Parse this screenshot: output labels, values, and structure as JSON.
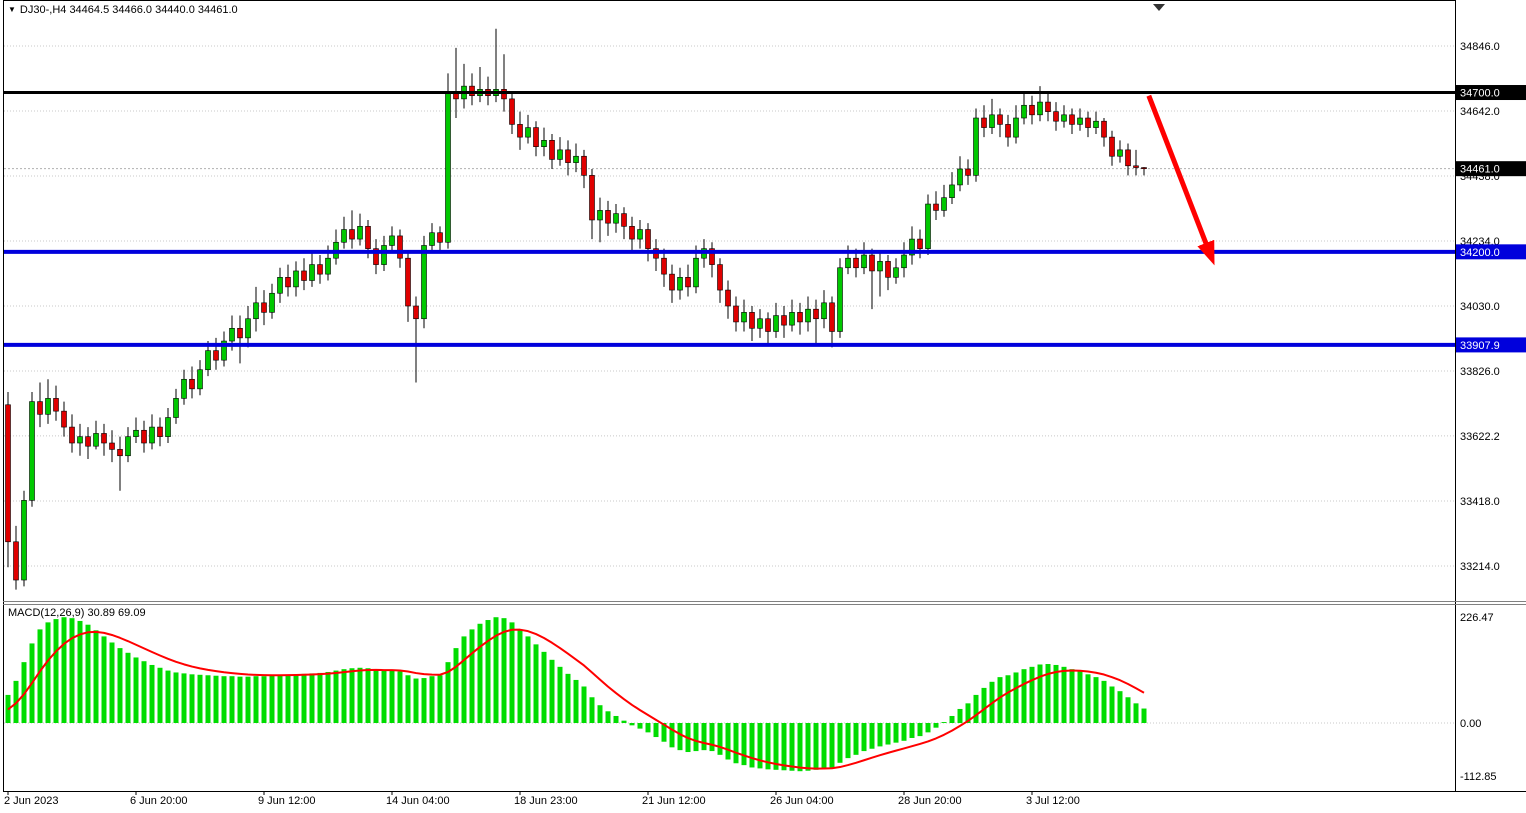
{
  "title_bar": {
    "text": "DJ30-,H4 34464.5 34466.0 34440.0 34461.0"
  },
  "icons": {
    "expand_arrow": "▼"
  },
  "macd_panel": {
    "label_text": "MACD(12,26,9) 30.89 69.09"
  },
  "colors": {
    "bull": "#00C800",
    "bear": "#E00000",
    "wick": "#000000",
    "hist": "#00DC00",
    "signal": "#FF0000",
    "line_black": "#000000",
    "line_blue": "#0000DC",
    "grid": "#C8C8C8",
    "bid_line": "#B0B0B0",
    "arrow": "#FF0000",
    "box_text": "#FFFFFF",
    "axis_text": "#000000"
  },
  "price_axis": {
    "line_labels": [
      {
        "text": "34700.0",
        "price": 34700.0,
        "bg": "#000000"
      },
      {
        "text": "34461.0",
        "price": 34461.0,
        "bg": "#000000"
      },
      {
        "text": "34200.0",
        "price": 34200.0,
        "bg": "#0000DC"
      },
      {
        "text": "33907.9",
        "price": 33907.9,
        "bg": "#0000DC"
      }
    ]
  },
  "arrow_annotation": {
    "color": "#FF0000",
    "from": {
      "bar_index": 142.6,
      "price": 34690
    },
    "to": {
      "bar_index": 150.0,
      "price": 34210
    }
  },
  "chart_data": [
    {
      "type": "candlestick",
      "title": "DJ30-,H4",
      "current_bar": {
        "open": 34464.5,
        "high": 34466.0,
        "low": 34440.0,
        "close": 34461.0
      },
      "ylim": [
        33140,
        34910
      ],
      "y_ticks": [
        {
          "label": "34846.0",
          "value": 34846.0
        },
        {
          "label": "34642.0",
          "value": 34642.0
        },
        {
          "label": "34438.0",
          "value": 34438.0
        },
        {
          "label": "34234.0",
          "value": 34234.0
        },
        {
          "label": "34030.0",
          "value": 34030.0
        },
        {
          "label": "33826.0",
          "value": 33826.0
        },
        {
          "label": "33622.2",
          "value": 33622.2
        },
        {
          "label": "33418.0",
          "value": 33418.0
        },
        {
          "label": "33214.0",
          "value": 33214.0
        }
      ],
      "x_ticks": [
        {
          "label": "2 Jun 2023",
          "index": 0
        },
        {
          "label": "6 Jun 20:00",
          "index": 16
        },
        {
          "label": "9 Jun 12:00",
          "index": 32
        },
        {
          "label": "14 Jun 04:00",
          "index": 48
        },
        {
          "label": "18 Jun 23:00",
          "index": 64
        },
        {
          "label": "21 Jun 12:00",
          "index": 80
        },
        {
          "label": "26 Jun 04:00",
          "index": 96
        },
        {
          "label": "28 Jun 20:00",
          "index": 112
        },
        {
          "label": "3 Jul 12:00",
          "index": 128
        }
      ],
      "horizontal_lines": [
        {
          "value": 34700.0,
          "color": "#000000",
          "width": 3
        },
        {
          "value": 34200.0,
          "color": "#0000DC",
          "width": 4
        },
        {
          "value": 33907.9,
          "color": "#0000DC",
          "width": 4
        }
      ],
      "bid_price": 34461.0,
      "ohlc": [
        [
          33720,
          33760,
          33210,
          33290
        ],
        [
          33290,
          33340,
          33140,
          33170
        ],
        [
          33170,
          33450,
          33150,
          33420
        ],
        [
          33420,
          33760,
          33400,
          33730
        ],
        [
          33730,
          33790,
          33650,
          33690
        ],
        [
          33690,
          33800,
          33660,
          33740
        ],
        [
          33740,
          33780,
          33670,
          33700
        ],
        [
          33700,
          33730,
          33620,
          33650
        ],
        [
          33650,
          33690,
          33570,
          33600
        ],
        [
          33600,
          33660,
          33560,
          33620
        ],
        [
          33620,
          33650,
          33550,
          33590
        ],
        [
          33590,
          33670,
          33580,
          33630
        ],
        [
          33630,
          33660,
          33560,
          33600
        ],
        [
          33600,
          33640,
          33540,
          33580
        ],
        [
          33580,
          33620,
          33450,
          33560
        ],
        [
          33560,
          33650,
          33540,
          33620
        ],
        [
          33620,
          33680,
          33600,
          33640
        ],
        [
          33640,
          33670,
          33570,
          33600
        ],
        [
          33600,
          33690,
          33580,
          33650
        ],
        [
          33650,
          33680,
          33590,
          33620
        ],
        [
          33620,
          33710,
          33600,
          33680
        ],
        [
          33680,
          33770,
          33660,
          33740
        ],
        [
          33740,
          33830,
          33720,
          33800
        ],
        [
          33800,
          33840,
          33740,
          33770
        ],
        [
          33770,
          33860,
          33750,
          33830
        ],
        [
          33830,
          33920,
          33810,
          33890
        ],
        [
          33890,
          33930,
          33830,
          33860
        ],
        [
          33860,
          33950,
          33840,
          33920
        ],
        [
          33920,
          34000,
          33890,
          33960
        ],
        [
          33960,
          34000,
          33850,
          33930
        ],
        [
          33930,
          34030,
          33900,
          33990
        ],
        [
          33990,
          34090,
          33950,
          34040
        ],
        [
          34040,
          34080,
          33970,
          34010
        ],
        [
          34010,
          34100,
          33990,
          34070
        ],
        [
          34070,
          34150,
          34040,
          34120
        ],
        [
          34120,
          34160,
          34060,
          34090
        ],
        [
          34090,
          34170,
          34060,
          34140
        ],
        [
          34140,
          34180,
          34080,
          34110
        ],
        [
          34110,
          34200,
          34090,
          34160
        ],
        [
          34160,
          34190,
          34100,
          34130
        ],
        [
          34130,
          34220,
          34110,
          34180
        ],
        [
          34180,
          34270,
          34160,
          34230
        ],
        [
          34230,
          34310,
          34210,
          34270
        ],
        [
          34270,
          34330,
          34210,
          34240
        ],
        [
          34240,
          34320,
          34220,
          34280
        ],
        [
          34280,
          34300,
          34180,
          34210
        ],
        [
          34210,
          34240,
          34130,
          34160
        ],
        [
          34160,
          34250,
          34140,
          34220
        ],
        [
          34220,
          34280,
          34200,
          34250
        ],
        [
          34250,
          34270,
          34150,
          34180
        ],
        [
          34180,
          34200,
          33980,
          34030
        ],
        [
          34030,
          34060,
          33790,
          33990
        ],
        [
          33990,
          34250,
          33960,
          34220
        ],
        [
          34220,
          34290,
          34200,
          34260
        ],
        [
          34260,
          34280,
          34200,
          34230
        ],
        [
          34230,
          34760,
          34210,
          34700
        ],
        [
          34700,
          34840,
          34620,
          34680
        ],
        [
          34680,
          34790,
          34650,
          34720
        ],
        [
          34720,
          34760,
          34660,
          34690
        ],
        [
          34690,
          34780,
          34670,
          34710
        ],
        [
          34710,
          34750,
          34660,
          34690
        ],
        [
          34690,
          34900,
          34670,
          34710
        ],
        [
          34710,
          34820,
          34640,
          34680
        ],
        [
          34680,
          34700,
          34570,
          34600
        ],
        [
          34600,
          34640,
          34520,
          34560
        ],
        [
          34560,
          34630,
          34540,
          34590
        ],
        [
          34590,
          34610,
          34500,
          34530
        ],
        [
          34530,
          34590,
          34500,
          34550
        ],
        [
          34550,
          34570,
          34460,
          34490
        ],
        [
          34490,
          34560,
          34470,
          34520
        ],
        [
          34520,
          34550,
          34440,
          34480
        ],
        [
          34480,
          34540,
          34450,
          34500
        ],
        [
          34500,
          34520,
          34400,
          34440
        ],
        [
          34440,
          34460,
          34240,
          34300
        ],
        [
          34300,
          34370,
          34230,
          34330
        ],
        [
          34330,
          34360,
          34250,
          34290
        ],
        [
          34290,
          34350,
          34260,
          34320
        ],
        [
          34320,
          34340,
          34240,
          34280
        ],
        [
          34280,
          34310,
          34200,
          34240
        ],
        [
          34240,
          34300,
          34210,
          34270
        ],
        [
          34270,
          34290,
          34170,
          34210
        ],
        [
          34210,
          34240,
          34140,
          34180
        ],
        [
          34180,
          34210,
          34090,
          34130
        ],
        [
          34130,
          34160,
          34040,
          34080
        ],
        [
          34080,
          34150,
          34050,
          34120
        ],
        [
          34120,
          34160,
          34060,
          34090
        ],
        [
          34090,
          34220,
          34070,
          34180
        ],
        [
          34180,
          34240,
          34150,
          34210
        ],
        [
          34210,
          34230,
          34120,
          34160
        ],
        [
          34160,
          34180,
          34040,
          34080
        ],
        [
          34080,
          34110,
          33990,
          34030
        ],
        [
          34030,
          34060,
          33950,
          33980
        ],
        [
          33980,
          34050,
          33950,
          34010
        ],
        [
          34010,
          34030,
          33920,
          33960
        ],
        [
          33960,
          34020,
          33930,
          33990
        ],
        [
          33990,
          34010,
          33910,
          33950
        ],
        [
          33950,
          34040,
          33930,
          34000
        ],
        [
          34000,
          34030,
          33930,
          33970
        ],
        [
          33970,
          34050,
          33950,
          34010
        ],
        [
          34010,
          34040,
          33940,
          33980
        ],
        [
          33980,
          34060,
          33950,
          34020
        ],
        [
          34020,
          34050,
          33910,
          33990
        ],
        [
          33990,
          34080,
          33960,
          34040
        ],
        [
          34040,
          34060,
          33900,
          33950
        ],
        [
          33950,
          34180,
          33930,
          34150
        ],
        [
          34150,
          34220,
          34130,
          34180
        ],
        [
          34180,
          34210,
          34120,
          34150
        ],
        [
          34150,
          34230,
          34130,
          34190
        ],
        [
          34190,
          34210,
          34020,
          34140
        ],
        [
          34140,
          34200,
          34060,
          34170
        ],
        [
          34170,
          34190,
          34080,
          34120
        ],
        [
          34120,
          34180,
          34100,
          34150
        ],
        [
          34150,
          34230,
          34120,
          34190
        ],
        [
          34190,
          34280,
          34160,
          34240
        ],
        [
          34240,
          34270,
          34180,
          34210
        ],
        [
          34210,
          34380,
          34190,
          34350
        ],
        [
          34350,
          34390,
          34300,
          34330
        ],
        [
          34330,
          34410,
          34310,
          34370
        ],
        [
          34370,
          34450,
          34350,
          34410
        ],
        [
          34410,
          34500,
          34390,
          34460
        ],
        [
          34460,
          34490,
          34410,
          34440
        ],
        [
          34440,
          34650,
          34420,
          34620
        ],
        [
          34620,
          34660,
          34560,
          34590
        ],
        [
          34590,
          34680,
          34570,
          34630
        ],
        [
          34630,
          34650,
          34560,
          34600
        ],
        [
          34600,
          34630,
          34530,
          34560
        ],
        [
          34560,
          34660,
          34540,
          34620
        ],
        [
          34620,
          34700,
          34600,
          34660
        ],
        [
          34660,
          34690,
          34600,
          34630
        ],
        [
          34630,
          34720,
          34610,
          34670
        ],
        [
          34670,
          34700,
          34610,
          34640
        ],
        [
          34640,
          34670,
          34580,
          34610
        ],
        [
          34610,
          34660,
          34590,
          34630
        ],
        [
          34630,
          34650,
          34570,
          34600
        ],
        [
          34600,
          34650,
          34580,
          34620
        ],
        [
          34620,
          34640,
          34560,
          34590
        ],
        [
          34590,
          34640,
          34570,
          34610
        ],
        [
          34610,
          34620,
          34530,
          34560
        ],
        [
          34560,
          34580,
          34470,
          34500
        ],
        [
          34500,
          34550,
          34480,
          34520
        ],
        [
          34520,
          34540,
          34440,
          34470
        ],
        [
          34470,
          34520,
          34440,
          34464.5
        ],
        [
          34464.5,
          34466.0,
          34440.0,
          34461.0
        ]
      ]
    },
    {
      "type": "bar",
      "title": "MACD(12,26,9)",
      "macd_value": 30.89,
      "signal_value": 69.09,
      "ylim": [
        -112.85,
        226.47
      ],
      "zero_line": true,
      "y_ticks": [
        {
          "label": "226.47",
          "value": 226.47
        },
        {
          "label": "0.00",
          "value": 0
        },
        {
          "label": "-112.85",
          "value": -112.85
        }
      ],
      "signal": {
        "type": "ema",
        "period": 9,
        "seed": 20
      },
      "values": [
        60,
        90,
        130,
        170,
        200,
        215,
        222,
        226,
        224,
        218,
        210,
        198,
        185,
        172,
        160,
        150,
        140,
        132,
        124,
        118,
        112,
        108,
        106,
        104,
        103,
        102,
        101,
        100,
        100,
        99,
        99,
        100,
        100,
        101,
        102,
        103,
        104,
        105,
        106,
        107,
        109,
        112,
        115,
        117,
        118,
        117,
        114,
        112,
        112,
        110,
        102,
        95,
        96,
        100,
        102,
        130,
        160,
        185,
        200,
        212,
        220,
        226,
        224,
        215,
        200,
        185,
        168,
        152,
        135,
        120,
        105,
        92,
        78,
        55,
        38,
        25,
        15,
        5,
        -5,
        -12,
        -20,
        -30,
        -40,
        -52,
        -58,
        -62,
        -60,
        -58,
        -60,
        -68,
        -78,
        -86,
        -90,
        -95,
        -97,
        -99,
        -100,
        -101,
        -102,
        -103,
        -102,
        -100,
        -96,
        -95,
        -85,
        -75,
        -68,
        -60,
        -55,
        -50,
        -46,
        -42,
        -38,
        -32,
        -28,
        -20,
        -10,
        2,
        15,
        30,
        42,
        60,
        75,
        88,
        98,
        102,
        108,
        115,
        120,
        125,
        126,
        124,
        120,
        115,
        110,
        104,
        98,
        90,
        78,
        68,
        55,
        42,
        30.89
      ]
    }
  ]
}
